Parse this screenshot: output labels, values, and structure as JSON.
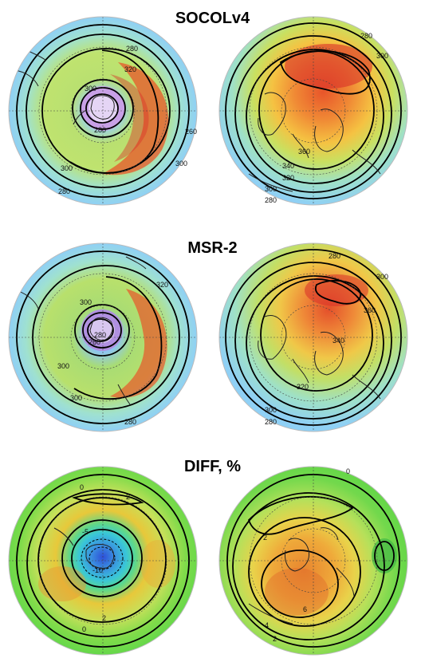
{
  "panels": [
    {
      "title": "SOCOLv4",
      "south_labels": [
        "280",
        "320",
        "300",
        "300",
        "280",
        "280",
        "260",
        "300"
      ],
      "north_labels": [
        "280",
        "300",
        "360",
        "340",
        "320",
        "300",
        "280"
      ]
    },
    {
      "title": "MSR-2",
      "south_labels": [
        "300",
        "320",
        "300",
        "260",
        "280",
        "300",
        "280"
      ],
      "north_labels": [
        "280",
        "300",
        "360",
        "340",
        "320",
        "300",
        "280"
      ]
    },
    {
      "title": "DIFF, %",
      "south_labels": [
        "0",
        "2",
        "-5",
        "-10",
        "2",
        "0"
      ],
      "north_labels": [
        "0",
        "2",
        "6",
        "4",
        "2"
      ]
    }
  ],
  "colors": {
    "cold": "#7ec8ff",
    "mid": "#9be07a",
    "warm": "#f5c242",
    "hot": "#e8552a",
    "low": "#6a4cc9"
  }
}
